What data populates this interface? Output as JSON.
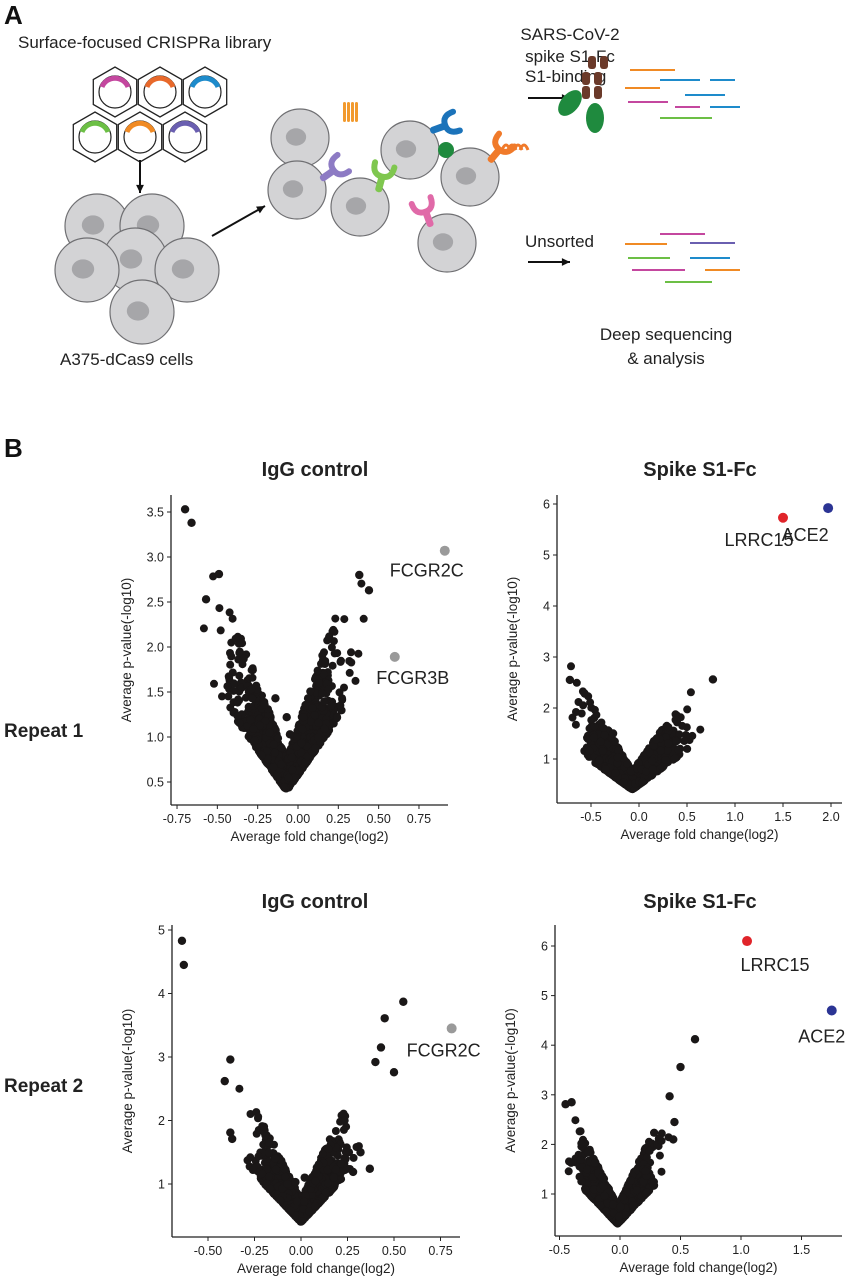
{
  "panel_a": {
    "letter": "A",
    "library_label": "Surface-focused CRISPRa library",
    "cells_label": "A375-dCas9 cells",
    "spike_label_line1": "SARS-CoV-2",
    "spike_label_line2": "spike S1-Fc",
    "sorted_label": "S1-binding",
    "unsorted_label": "Unsorted",
    "sequencing_line1": "Deep sequencing",
    "sequencing_line2": "& analysis",
    "guide_colors": [
      "#c4479f",
      "#e8692b",
      "#1e8bcb",
      "#6cbf45",
      "#f08a24",
      "#6a5fb0"
    ]
  },
  "panel_b": {
    "letter": "B",
    "row_labels": [
      "Repeat 1",
      "Repeat 2"
    ]
  },
  "colors": {
    "points": "#1a1717",
    "control_hit": "#9a9a9a",
    "LRRC15": "#e0242a",
    "ACE2": "#2b3494"
  },
  "chart_data": [
    {
      "type": "scatter",
      "title": "IgG control",
      "row": "Repeat 1",
      "xlabel": "Average fold change(log2)",
      "ylabel": "Average p-value(-log10)",
      "xticks": [
        "-0.75",
        "-0.50",
        "-0.25",
        "0.00",
        "0.25",
        "0.50",
        "0.75"
      ],
      "xtick_values": [
        -0.75,
        -0.5,
        -0.25,
        0,
        0.25,
        0.5,
        0.75
      ],
      "yticks": [
        "0.5",
        "1.0",
        "1.5",
        "2.0",
        "2.5",
        "3.0",
        "3.5"
      ],
      "ytick_values": [
        0.5,
        1,
        1.5,
        2,
        2.5,
        3,
        3.5
      ],
      "xlim": [
        -0.78,
        0.96
      ],
      "ylim": [
        0.25,
        3.7
      ],
      "grid": false,
      "outliers": [
        [
          -0.7,
          3.53
        ],
        [
          -0.66,
          3.38
        ],
        [
          -0.49,
          2.81
        ],
        [
          -0.57,
          2.53
        ],
        [
          0.38,
          2.8
        ],
        [
          0.44,
          2.63
        ],
        [
          -0.14,
          1.43
        ],
        [
          -0.07,
          1.22
        ],
        [
          -0.05,
          1.03
        ],
        [
          -0.21,
          1.36
        ]
      ],
      "highlighted": [
        {
          "gene": "FCGR2C",
          "x": 0.91,
          "y": 3.07,
          "color": "#9a9a9a"
        },
        {
          "gene": "FCGR3B",
          "x": 0.6,
          "y": 1.89,
          "color": "#9a9a9a"
        }
      ]
    },
    {
      "type": "scatter",
      "title": "Spike S1-Fc",
      "row": "Repeat 1",
      "xlabel": "Average fold change(log2)",
      "ylabel": "Average p-value(-log10)",
      "xticks": [
        "-0.5",
        "0.0",
        "0.5",
        "1.0",
        "1.5",
        "2.0"
      ],
      "xtick_values": [
        -0.5,
        0,
        0.5,
        1,
        1.5,
        2
      ],
      "yticks": [
        "1",
        "2",
        "3",
        "4",
        "5",
        "6"
      ],
      "ytick_values": [
        1,
        2,
        3,
        4,
        5,
        6
      ],
      "xlim": [
        -0.85,
        2.1
      ],
      "ylim": [
        0.1,
        6.2
      ],
      "grid": false,
      "outliers": [
        [
          0.77,
          2.56
        ],
        [
          -0.27,
          1.5
        ],
        [
          -0.72,
          2.55
        ]
      ],
      "highlighted": [
        {
          "gene": "LRRC15",
          "x": 1.5,
          "y": 5.73,
          "color": "#e0242a"
        },
        {
          "gene": "ACE2",
          "x": 1.97,
          "y": 5.92,
          "color": "#2b3494"
        }
      ]
    },
    {
      "type": "scatter",
      "title": "IgG control",
      "row": "Repeat 2",
      "xlabel": "Average fold change(log2)",
      "ylabel": "Average p-value(-log10)",
      "xticks": [
        "-0.50",
        "-0.25",
        "0.00",
        "0.25",
        "0.50",
        "0.75"
      ],
      "xtick_values": [
        -0.5,
        -0.25,
        0,
        0.25,
        0.5,
        0.75
      ],
      "yticks": [
        "1",
        "2",
        "3",
        "4",
        "5"
      ],
      "ytick_values": [
        1,
        2,
        3,
        4,
        5
      ],
      "xlim": [
        -0.7,
        0.87
      ],
      "ylim": [
        0.2,
        5.1
      ],
      "grid": false,
      "outliers": [
        [
          -0.64,
          4.83
        ],
        [
          -0.63,
          4.45
        ],
        [
          0.55,
          3.87
        ],
        [
          0.45,
          3.61
        ],
        [
          0.43,
          3.15
        ],
        [
          0.4,
          2.92
        ],
        [
          0.5,
          2.76
        ],
        [
          -0.38,
          2.96
        ],
        [
          -0.41,
          2.62
        ],
        [
          -0.38,
          1.81
        ],
        [
          -0.37,
          1.71
        ],
        [
          0.37,
          1.24
        ],
        [
          0.28,
          1.19
        ],
        [
          0.32,
          1.5
        ],
        [
          -0.03,
          1.03
        ],
        [
          0.02,
          1.1
        ]
      ],
      "highlighted": [
        {
          "gene": "FCGR2C",
          "x": 0.81,
          "y": 3.45,
          "color": "#9a9a9a"
        }
      ]
    },
    {
      "type": "scatter",
      "title": "Spike S1-Fc",
      "row": "Repeat 2",
      "xlabel": "Average fold change(log2)",
      "ylabel": "Average p-value(-log10)",
      "xticks": [
        "-0.5",
        "0.0",
        "0.5",
        "1.0",
        "1.5"
      ],
      "xtick_values": [
        -0.5,
        0,
        0.5,
        1,
        1.5
      ],
      "yticks": [
        "1",
        "2",
        "3",
        "4",
        "5",
        "6"
      ],
      "ytick_values": [
        1,
        2,
        3,
        4,
        5,
        6
      ],
      "xlim": [
        -0.55,
        1.85
      ],
      "ylim": [
        0.15,
        6.4
      ],
      "grid": false,
      "outliers": [
        [
          0.62,
          4.12
        ],
        [
          0.5,
          3.56
        ],
        [
          0.41,
          2.97
        ],
        [
          -0.45,
          2.81
        ],
        [
          -0.4,
          2.85
        ],
        [
          0.45,
          2.45
        ],
        [
          0.44,
          2.1
        ]
      ],
      "highlighted": [
        {
          "gene": "LRRC15",
          "x": 1.05,
          "y": 6.1,
          "color": "#e0242a"
        },
        {
          "gene": "ACE2",
          "x": 1.75,
          "y": 4.7,
          "color": "#2b3494"
        }
      ]
    }
  ]
}
